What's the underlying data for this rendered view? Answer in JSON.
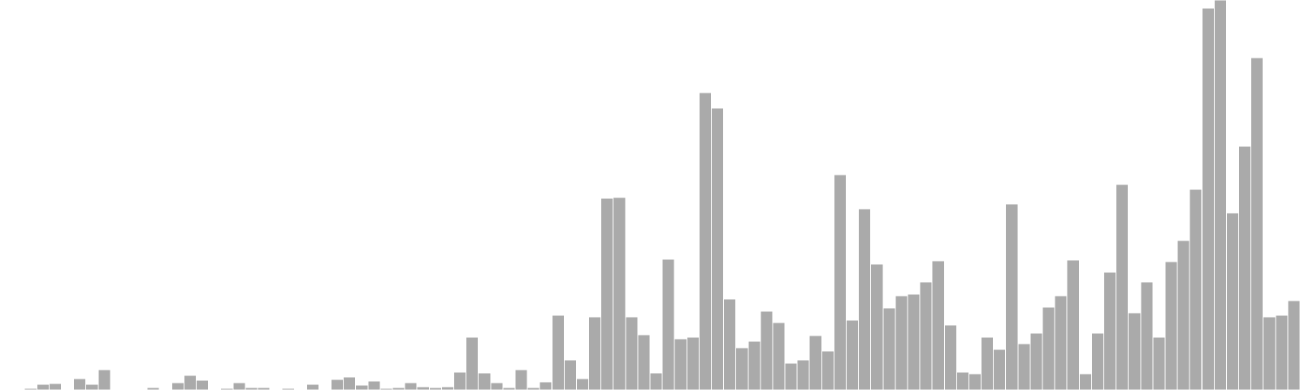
{
  "chart_data": {
    "type": "bar",
    "title": "",
    "xlabel": "",
    "ylabel": "",
    "grid": false,
    "legend": "none",
    "bar_color": "#aaaaaa",
    "background": "#ffffff",
    "ylim": [
      0,
      480
    ],
    "values": [
      0,
      1,
      2,
      7,
      8,
      1,
      14,
      7,
      25,
      1,
      1,
      1,
      3,
      0,
      9,
      18,
      12,
      1,
      2,
      9,
      3,
      3,
      0,
      2,
      0,
      7,
      0,
      13,
      16,
      6,
      11,
      2,
      3,
      9,
      4,
      3,
      4,
      22,
      65,
      21,
      9,
      3,
      25,
      3,
      10,
      92,
      37,
      14,
      90,
      236,
      237,
      90,
      68,
      21,
      161,
      63,
      65,
      366,
      347,
      112,
      52,
      60,
      97,
      83,
      33,
      37,
      67,
      48,
      265,
      86,
      223,
      155,
      101,
      116,
      118,
      133,
      159,
      80,
      22,
      20,
      65,
      50,
      229,
      57,
      70,
      102,
      116,
      160,
      20,
      70,
      145,
      253,
      95,
      133,
      65,
      158,
      184,
      247,
      470,
      480,
      218,
      300,
      409,
      90,
      92,
      110
    ]
  }
}
